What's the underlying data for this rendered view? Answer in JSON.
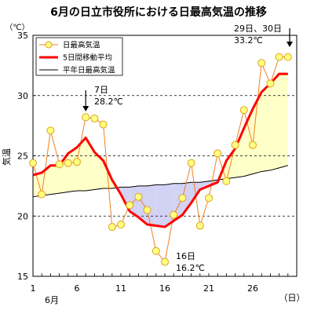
{
  "chart_data": {
    "type": "line",
    "title": "6月の日立市役所における日最高気温の推移",
    "ylabel": "気温",
    "yunit": "（℃）",
    "xunit": "（日）",
    "xmonth": "6月",
    "ylim": [
      15,
      35
    ],
    "yticks": [
      15,
      20,
      25,
      30,
      35
    ],
    "xlim": [
      1,
      31
    ],
    "xticks": [
      1,
      6,
      11,
      16,
      21,
      26
    ],
    "grid": "dashed-horizontal",
    "legend_position": "top-left",
    "x": [
      1,
      2,
      3,
      4,
      5,
      6,
      7,
      8,
      9,
      10,
      11,
      12,
      13,
      14,
      15,
      16,
      17,
      18,
      19,
      20,
      21,
      22,
      23,
      24,
      25,
      26,
      27,
      28,
      29,
      30
    ],
    "series": [
      {
        "name": "日最高気温",
        "color": "#f08020",
        "marker_fill": "#ffff80",
        "values": [
          24.4,
          21.8,
          27.1,
          24.3,
          24.4,
          24.5,
          28.2,
          28.1,
          27.6,
          19.1,
          19.3,
          20.9,
          21.6,
          20.5,
          17.1,
          16.2,
          20.1,
          21.5,
          24.4,
          19.2,
          21.5,
          25.2,
          22.9,
          25.9,
          28.8,
          25.9,
          32.7,
          31.0,
          33.2,
          33.2
        ]
      },
      {
        "name": "5日間移動平均",
        "color": "#ff0000",
        "values": [
          23.4,
          23.6,
          24.2,
          24.2,
          25.2,
          25.7,
          26.5,
          25.3,
          24.6,
          23.0,
          21.8,
          20.4,
          19.9,
          19.3,
          19.2,
          19.1,
          19.6,
          20.1,
          21.1,
          22.2,
          22.5,
          22.8,
          24.6,
          25.6,
          27.3,
          28.9,
          30.3,
          31.0,
          31.8,
          31.8
        ]
      },
      {
        "name": "平年日最高気温",
        "color": "#000000",
        "values": [
          21.6,
          21.7,
          21.8,
          21.9,
          22.0,
          22.1,
          22.1,
          22.2,
          22.3,
          22.3,
          22.4,
          22.4,
          22.5,
          22.5,
          22.6,
          22.6,
          22.7,
          22.7,
          22.8,
          22.8,
          22.9,
          23.0,
          23.1,
          23.2,
          23.3,
          23.5,
          23.7,
          23.8,
          24.0,
          24.2
        ]
      }
    ],
    "annotations": [
      {
        "day_label": "7日",
        "value_label": "28.2℃",
        "x": 7,
        "y": 28.2
      },
      {
        "day_label": "16日",
        "value_label": "16.2℃",
        "x": 16,
        "y": 16.2
      },
      {
        "day_label": "29日、30日",
        "value_label": "33.2℃",
        "x": 29.5,
        "y": 33.2
      }
    ]
  }
}
